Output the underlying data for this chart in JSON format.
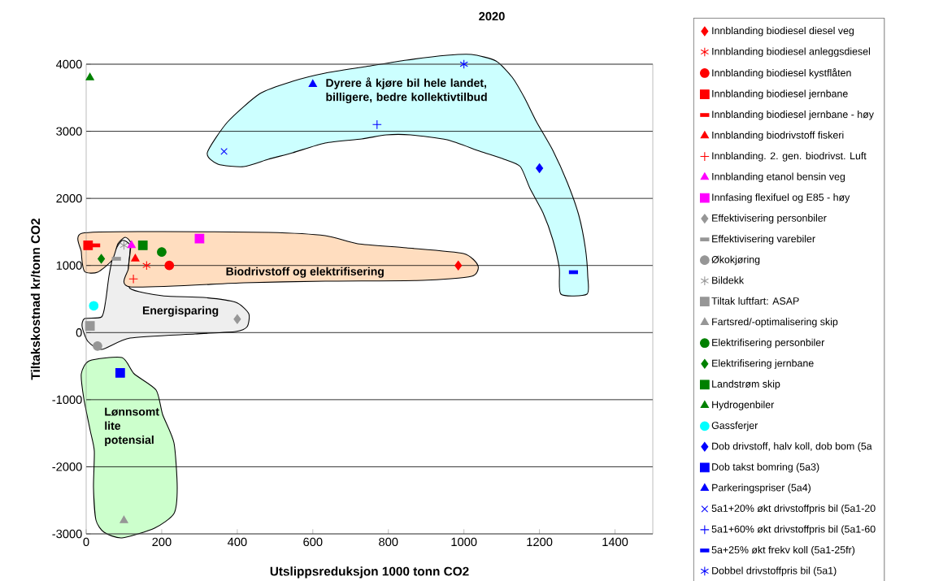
{
  "chart_data": {
    "type": "scatter",
    "title": "2020",
    "xlabel": "Utslippsreduksjon 1000 tonn CO2",
    "ylabel": "Tiltakskostnad kr/tonn CO2",
    "xlim": [
      0,
      1500
    ],
    "ylim": [
      -3000,
      4000
    ],
    "xticks": [
      0,
      200,
      400,
      600,
      800,
      1000,
      1200,
      1400
    ],
    "yticks": [
      -3000,
      -2000,
      -1000,
      0,
      1000,
      2000,
      3000,
      4000
    ],
    "grid": "y",
    "legend": "right",
    "annotations": [
      "Dyrere å kjøre bil hele landet, billigere, bedre kollektivtilbud",
      "Biodrivstoff og elektrifisering",
      "Energisparing",
      "Lønnsomt lite potensial"
    ],
    "series": [
      {
        "name": "Innblanding biodiesel diesel veg",
        "color": "#ff0000",
        "marker": "diamond",
        "x": [
          985
        ],
        "values": [
          1000
        ]
      },
      {
        "name": "Innblanding biodiesel anleggsdiesel",
        "color": "#ff0000",
        "marker": "cross",
        "x": [
          160
        ],
        "values": [
          1000
        ]
      },
      {
        "name": "Innblanding biodiesel kystflåten",
        "color": "#ff0000",
        "marker": "circle",
        "x": [
          220
        ],
        "values": [
          1000
        ]
      },
      {
        "name": "Innblanding biodiesel jernbane",
        "color": "#ff0000",
        "marker": "square",
        "x": [
          5
        ],
        "values": [
          1300
        ]
      },
      {
        "name": "Innblanding biodiesel jernbane - høy",
        "color": "#ff0000",
        "x": [
          25
        ],
        "values": [
          1300
        ]
      },
      {
        "name": "Innblanding biodrivstoff fiskeri",
        "color": "#ff0000",
        "marker": "triangle",
        "x": [
          130
        ],
        "values": [
          1100
        ]
      },
      {
        "name": "Innblanding. 2. gen. biodrivst. Luft",
        "color": "#ff0000",
        "marker": "cross",
        "x": [
          125
        ],
        "values": [
          800
        ]
      },
      {
        "name": "Innblanding etanol bensin veg",
        "color": "#ff00ff",
        "marker": "triangle",
        "x": [
          120
        ],
        "values": [
          1300
        ]
      },
      {
        "name": "Innfasing flexifuel og E85 - høy",
        "color": "#ff00ff",
        "marker": "square",
        "x": [
          300
        ],
        "values": [
          1400
        ]
      },
      {
        "name": "Effektivisering personbiler",
        "color": "#969696",
        "marker": "diamond",
        "x": [
          400
        ],
        "values": [
          200
        ]
      },
      {
        "name": "Effektivisering varebiler",
        "color": "#969696",
        "x": [
          80
        ],
        "values": [
          1100
        ]
      },
      {
        "name": "Økokjøring",
        "color": "#969696",
        "marker": "circle",
        "x": [
          30
        ],
        "values": [
          -200
        ]
      },
      {
        "name": "Bildekk",
        "color": "#969696",
        "marker": "cross",
        "x": [
          100
        ],
        "values": [
          1300
        ]
      },
      {
        "name": "Tiltak luftfart: ASAP",
        "color": "#969696",
        "marker": "square",
        "x": [
          10
        ],
        "values": [
          100
        ]
      },
      {
        "name": "Fartsred/-optimalisering skip",
        "color": "#969696",
        "marker": "triangle",
        "x": [
          100
        ],
        "values": [
          -2800
        ]
      },
      {
        "name": "Elektrifisering personbiler",
        "color": "#008000",
        "marker": "circle",
        "x": [
          200
        ],
        "values": [
          1200
        ]
      },
      {
        "name": "Elektrifisering jernbane",
        "color": "#008000",
        "marker": "diamond",
        "x": [
          40
        ],
        "values": [
          1100
        ]
      },
      {
        "name": "Landstrøm skip",
        "color": "#008000",
        "marker": "square",
        "x": [
          150
        ],
        "values": [
          1300
        ]
      },
      {
        "name": "Hydrogenbiler",
        "color": "#008000",
        "marker": "triangle",
        "x": [
          10
        ],
        "values": [
          3800
        ]
      },
      {
        "name": "Gassferjer",
        "color": "#00ffff",
        "marker": "circle",
        "x": [
          20
        ],
        "values": [
          400
        ]
      },
      {
        "name": "Dob drivstoff, halv koll, dob bom (5a",
        "color": "#0000ff",
        "marker": "diamond",
        "x": [
          1200
        ],
        "values": [
          2450
        ]
      },
      {
        "name": "Dob takst bomring (5a3)",
        "color": "#0000ff",
        "marker": "square",
        "x": [
          90
        ],
        "values": [
          -600
        ]
      },
      {
        "name": "Parkeringspriser (5a4)",
        "color": "#0000ff",
        "marker": "triangle",
        "x": [
          600
        ],
        "values": [
          3700
        ]
      },
      {
        "name": "5a1+20% økt drivstoffpris bil (5a1-20",
        "color": "#0000ff",
        "marker": "cross",
        "x": [
          365
        ],
        "values": [
          2700
        ]
      },
      {
        "name": "5a1+60% økt drivstoffpris bil (5a1-60",
        "color": "#0000ff",
        "marker": "cross",
        "x": [
          770
        ],
        "values": [
          3100
        ]
      },
      {
        "name": "5a+25% økt frekv koll (5a1-25fr)",
        "color": "#0000ff",
        "x": [
          1290
        ],
        "values": [
          900
        ]
      },
      {
        "name": "Dobbel drivstoffpris bil (5a1)",
        "color": "#0000ff",
        "marker": "cross",
        "x": [
          1000
        ],
        "values": [
          4000
        ]
      }
    ]
  }
}
